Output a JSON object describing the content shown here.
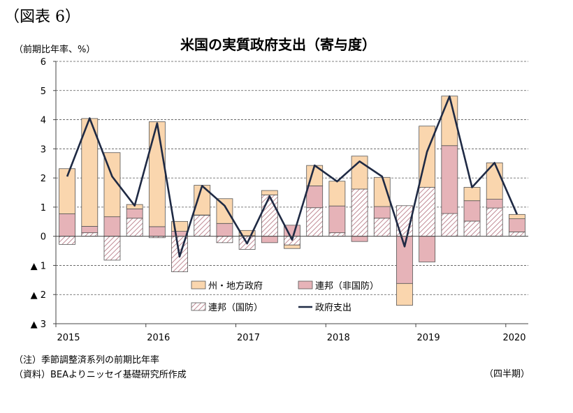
{
  "figure_label": "（図表 6）",
  "unit_label": "（前期比年率、%）",
  "x_unit_label": "（四半期）",
  "notes": [
    "（注）季節調整済系列の前期比年率",
    "（資料）BEAよりニッセイ基礎研究所作成"
  ],
  "colors": {
    "state_local": "#fad6ae",
    "federal_nondefense": "#e6b3b8",
    "federal_defense_hatch": "#c8a0a8",
    "total_line": "#1f2a44",
    "outline": "#555555",
    "grid": "#555555"
  },
  "chart_data": {
    "type": "bar",
    "title": "米国の実質政府支出（寄与度）",
    "ylim": [
      -3,
      6
    ],
    "y_ticks": [
      6,
      5,
      4,
      3,
      2,
      1,
      0,
      -1,
      -2,
      -3
    ],
    "y_tick_labels": [
      "6",
      "5",
      "4",
      "3",
      "2",
      "1",
      "0",
      "▲ 1",
      "▲ 2",
      "▲ 3"
    ],
    "year_labels": [
      "2015",
      "2016",
      "2017",
      "2018",
      "2019",
      "2020"
    ],
    "year_label_positions": [
      0,
      4,
      8,
      12,
      16,
      20
    ],
    "categories": [
      "2015Q1",
      "2015Q2",
      "2015Q3",
      "2015Q4",
      "2016Q1",
      "2016Q2",
      "2016Q3",
      "2016Q4",
      "2017Q1",
      "2017Q2",
      "2017Q3",
      "2017Q4",
      "2018Q1",
      "2018Q2",
      "2018Q3",
      "2018Q4",
      "2019Q1",
      "2019Q2",
      "2019Q3",
      "2019Q4",
      "2020Q1"
    ],
    "series": [
      {
        "name": "連邦（国防）",
        "kind": "bar",
        "values": [
          -0.28,
          0.12,
          -0.82,
          0.62,
          -0.05,
          -1.22,
          0.72,
          -0.22,
          -0.45,
          1.42,
          -0.3,
          0.98,
          0.12,
          1.62,
          0.62,
          1.05,
          1.68,
          0.78,
          0.52,
          0.97,
          0.15
        ]
      },
      {
        "name": "連邦（非国防）",
        "kind": "bar",
        "values": [
          0.77,
          0.22,
          0.67,
          0.32,
          0.33,
          0.17,
          0.01,
          0.44,
          0.02,
          -0.22,
          0.38,
          0.75,
          0.92,
          -0.18,
          0.4,
          -1.62,
          -0.88,
          2.33,
          0.7,
          0.3,
          0.45
        ]
      },
      {
        "name": "州・地方政府",
        "kind": "bar",
        "values": [
          1.55,
          3.7,
          2.2,
          0.15,
          3.6,
          0.34,
          1.02,
          0.85,
          0.18,
          0.15,
          -0.12,
          0.7,
          0.85,
          1.13,
          1.0,
          -0.75,
          2.1,
          1.7,
          0.46,
          1.25,
          0.15
        ]
      },
      {
        "name": "政府支出",
        "kind": "line",
        "values": [
          2.05,
          4.05,
          2.05,
          1.05,
          3.88,
          -0.7,
          1.73,
          1.05,
          -0.25,
          1.37,
          -0.12,
          2.43,
          1.88,
          2.57,
          2.05,
          -0.35,
          2.9,
          4.8,
          1.68,
          2.52,
          0.75
        ]
      }
    ],
    "legend": [
      {
        "label": "州・地方政府",
        "key": "state_local"
      },
      {
        "label": "連邦（非国防）",
        "key": "federal_nondefense"
      },
      {
        "label": "連邦（国防）",
        "key": "federal_defense"
      },
      {
        "label": "政府支出",
        "key": "total_line"
      }
    ],
    "legend_placement": "bottom-left, inside plot",
    "grid": true
  }
}
